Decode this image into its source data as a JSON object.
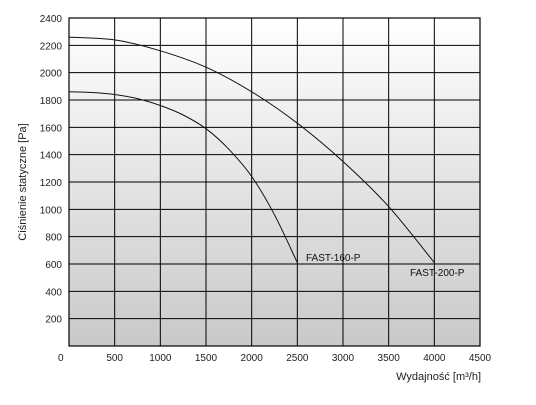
{
  "chart_data": {
    "type": "line",
    "title": "",
    "xlabel": "Wydajność [m³/h]",
    "ylabel": "Ciśnienie statyczne [Pa]",
    "xlim": [
      0,
      4500
    ],
    "ylim": [
      0,
      2400
    ],
    "x_ticks": [
      "0",
      "500",
      "1000",
      "1500",
      "2000",
      "2500",
      "3000",
      "3500",
      "4000",
      "4500"
    ],
    "y_ticks": [
      "200",
      "400",
      "600",
      "800",
      "1000",
      "1200",
      "1400",
      "1600",
      "1800",
      "2000",
      "2200",
      "2400"
    ],
    "grid": true,
    "legend": "none",
    "series": [
      {
        "name": "FAST-160-P",
        "x": [
          0,
          250,
          500,
          750,
          1000,
          1250,
          1500,
          1750,
          2000,
          2250,
          2500
        ],
        "y": [
          1860,
          1855,
          1840,
          1810,
          1760,
          1690,
          1590,
          1440,
          1240,
          960,
          610
        ]
      },
      {
        "name": "FAST-200-P",
        "x": [
          0,
          500,
          1000,
          1500,
          2000,
          2500,
          3000,
          3500,
          4000
        ],
        "y": [
          2260,
          2240,
          2160,
          2040,
          1860,
          1630,
          1350,
          1020,
          610
        ]
      }
    ]
  }
}
